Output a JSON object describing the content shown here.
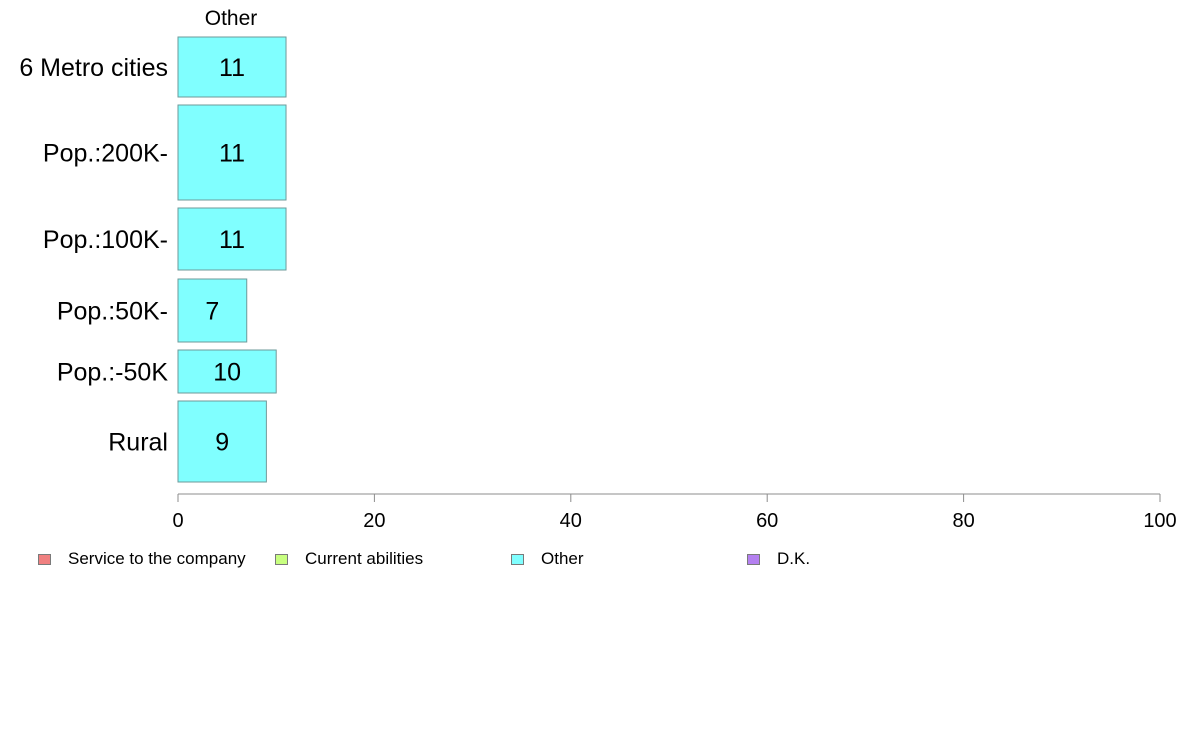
{
  "chart_data": {
    "type": "bar",
    "orientation": "horizontal",
    "series_title": "Other",
    "categories": [
      "6 Metro cities",
      "Pop.:200K-",
      "Pop.:100K-",
      "Pop.:50K-",
      "Pop.:-50K",
      "Rural"
    ],
    "values": [
      11,
      11,
      11,
      7,
      10,
      9
    ],
    "value_labels": [
      "11",
      "11",
      "11",
      "7",
      "10",
      "9"
    ],
    "xlim": [
      0,
      100
    ],
    "xticks": [
      "0",
      "20",
      "40",
      "60",
      "80",
      "100"
    ],
    "grid": false,
    "bar_color": "#80ffff",
    "legend_position": "bottom",
    "legend": [
      {
        "label": "Service to the company",
        "color": "#f08080"
      },
      {
        "label": "Current abilities",
        "color": "#c8ff80"
      },
      {
        "label": "Other",
        "color": "#80ffff"
      },
      {
        "label": "D.K.",
        "color": "#b480f0"
      }
    ]
  }
}
